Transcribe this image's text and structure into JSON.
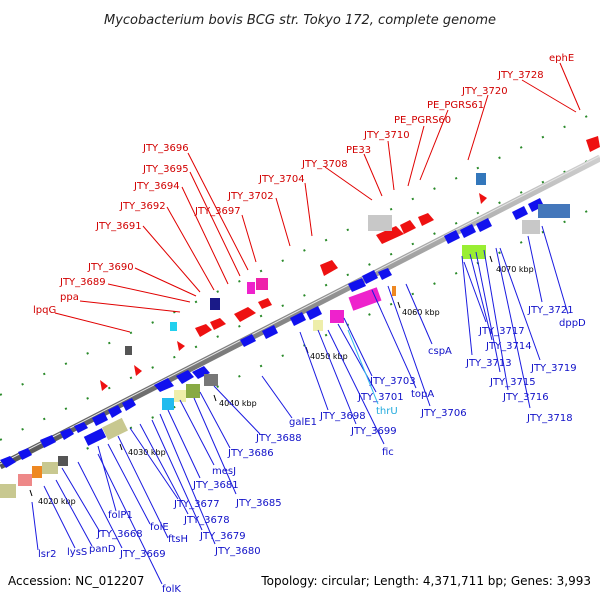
{
  "header": {
    "title": "Mycobacterium bovis BCG str. Tokyo 172, complete genome"
  },
  "footer": {
    "accession": "Accession: NC_012207",
    "topology": "Topology: circular; Length: 4,371,711 bp; Genes: 3,993"
  },
  "scale": [
    {
      "label": "4020 kbp"
    },
    {
      "label": "4030 kbp"
    },
    {
      "label": "4040 kbp"
    },
    {
      "label": "4050 kbp"
    },
    {
      "label": "4060 kbp"
    },
    {
      "label": "4070 kbp"
    }
  ],
  "forward_labels": [
    {
      "text": "lpqG"
    },
    {
      "text": "ppa"
    },
    {
      "text": "JTY_3689"
    },
    {
      "text": "JTY_3690"
    },
    {
      "text": "JTY_3691"
    },
    {
      "text": "JTY_3692"
    },
    {
      "text": "JTY_3694"
    },
    {
      "text": "JTY_3695"
    },
    {
      "text": "JTY_3696"
    },
    {
      "text": "JTY_3697"
    },
    {
      "text": "JTY_3702"
    },
    {
      "text": "JTY_3704"
    },
    {
      "text": "JTY_3708"
    },
    {
      "text": "PE33"
    },
    {
      "text": "JTY_3710"
    },
    {
      "text": "PE_PGRS60"
    },
    {
      "text": "PE_PGRS61"
    },
    {
      "text": "JTY_3720"
    },
    {
      "text": "JTY_3728"
    },
    {
      "text": "ephE"
    }
  ],
  "reverse_labels": [
    {
      "text": "lsr2"
    },
    {
      "text": "lysS"
    },
    {
      "text": "panD"
    },
    {
      "text": "JTY_3668"
    },
    {
      "text": "JTY_3669"
    },
    {
      "text": "folK"
    },
    {
      "text": "folP1"
    },
    {
      "text": "folE"
    },
    {
      "text": "ftsH"
    },
    {
      "text": "JTY_3677"
    },
    {
      "text": "JTY_3678"
    },
    {
      "text": "JTY_3679"
    },
    {
      "text": "JTY_3680"
    },
    {
      "text": "JTY_3681"
    },
    {
      "text": "mesJ"
    },
    {
      "text": "JTY_3685"
    },
    {
      "text": "JTY_3686"
    },
    {
      "text": "JTY_3688"
    },
    {
      "text": "galE1"
    },
    {
      "text": "JTY_3698"
    },
    {
      "text": "JTY_3699"
    },
    {
      "text": "JTY_3703"
    },
    {
      "text": "JTY_3701"
    },
    {
      "text": "fic"
    },
    {
      "text": "thrU"
    },
    {
      "text": "topA"
    },
    {
      "text": "JTY_3706"
    },
    {
      "text": "cspA"
    },
    {
      "text": "JTY_3713"
    },
    {
      "text": "JTY_3714"
    },
    {
      "text": "JTY_3715"
    },
    {
      "text": "JTY_3716"
    },
    {
      "text": "JTY_3717"
    },
    {
      "text": "JTY_3718"
    },
    {
      "text": "JTY_3719"
    },
    {
      "text": "JTY_3721"
    },
    {
      "text": "dppD"
    }
  ],
  "colors": {
    "forward": "#ee1111",
    "reverse": "#1111ee",
    "trna": "#22bbee",
    "backbone": "#8a8a8a",
    "ticks": "#228822"
  }
}
